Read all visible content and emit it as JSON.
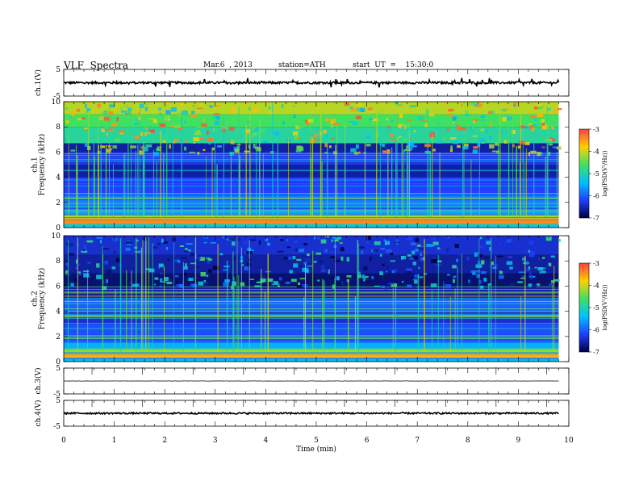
{
  "header": {
    "title": "VLF  Spectra",
    "date": "Mar.6  , 2013",
    "station": "station=ATH",
    "start": "start  UT  =    15:30:0"
  },
  "colorbar": {
    "label": "log(PSD(V²/Hz))",
    "ticks": [
      "-3",
      "-4",
      "-5",
      "-6",
      "-7"
    ],
    "colors": [
      "#ff4040",
      "#ffd000",
      "#40e060",
      "#00c0ff",
      "#2040ff",
      "#000040"
    ]
  },
  "chart_data": [
    {
      "type": "line",
      "name": "ch.1(V)",
      "ylabel": "ch.1(V)",
      "ylim": [
        -5,
        5
      ],
      "yticks": [
        "5",
        "-5"
      ],
      "xlim": [
        0,
        10
      ],
      "data_end_min": 9.8,
      "level": 0,
      "noise_amplitude": 0.4,
      "spike_amplitude": 1.5
    },
    {
      "type": "heatmap",
      "name": "ch.1 spectrogram",
      "ylabel": "ch.1\nFrequency (kHz)",
      "ylim": [
        0,
        10
      ],
      "yticks": [
        "0",
        "2",
        "4",
        "6",
        "8",
        "10"
      ],
      "xlim": [
        0,
        10
      ],
      "data_end_min": 9.8,
      "bands": [
        {
          "f0": 0.0,
          "f1": 0.3,
          "logPSD": -5.3
        },
        {
          "f0": 0.3,
          "f1": 0.6,
          "logPSD": -3.4
        },
        {
          "f0": 0.6,
          "f1": 1.0,
          "logPSD": -3.9
        },
        {
          "f0": 1.0,
          "f1": 1.5,
          "logPSD": -5.6
        },
        {
          "f0": 1.5,
          "f1": 2.5,
          "logPSD": -5.8
        },
        {
          "f0": 2.5,
          "f1": 4.0,
          "logPSD": -6.2
        },
        {
          "f0": 4.0,
          "f1": 5.0,
          "logPSD": -6.6
        },
        {
          "f0": 5.0,
          "f1": 6.0,
          "logPSD": -6.3
        },
        {
          "f0": 6.0,
          "f1": 6.7,
          "logPSD": -6.6
        },
        {
          "f0": 6.7,
          "f1": 8.0,
          "logPSD": -4.9
        },
        {
          "f0": 8.0,
          "f1": 9.0,
          "logPSD": -4.6
        },
        {
          "f0": 9.0,
          "f1": 10.0,
          "logPSD": -4.1
        }
      ],
      "spike_count": 90
    },
    {
      "type": "heatmap",
      "name": "ch.2 spectrogram",
      "ylabel": "ch.2\nFrequency (kHz)",
      "ylim": [
        0,
        10
      ],
      "yticks": [
        "0",
        "2",
        "4",
        "6",
        "8",
        "10"
      ],
      "xlim": [
        0,
        10
      ],
      "data_end_min": 9.8,
      "bands": [
        {
          "f0": 0.0,
          "f1": 0.3,
          "logPSD": -5.4
        },
        {
          "f0": 0.3,
          "f1": 0.6,
          "logPSD": -3.6
        },
        {
          "f0": 0.6,
          "f1": 1.0,
          "logPSD": -4.3
        },
        {
          "f0": 1.0,
          "f1": 1.5,
          "logPSD": -5.5
        },
        {
          "f0": 1.5,
          "f1": 3.0,
          "logPSD": -6.1
        },
        {
          "f0": 3.0,
          "f1": 4.0,
          "logPSD": -6.4
        },
        {
          "f0": 4.0,
          "f1": 5.0,
          "logPSD": -6.0
        },
        {
          "f0": 5.0,
          "f1": 6.0,
          "logPSD": -6.6
        },
        {
          "f0": 6.0,
          "f1": 7.0,
          "logPSD": -6.8
        },
        {
          "f0": 7.0,
          "f1": 8.5,
          "logPSD": -6.6
        },
        {
          "f0": 8.5,
          "f1": 10.0,
          "logPSD": -6.4
        }
      ],
      "spike_count": 60
    },
    {
      "type": "line",
      "name": "ch.3(V)",
      "ylabel": "ch.3(V)",
      "ylim": [
        -5,
        5
      ],
      "yticks": [
        "5",
        "-5"
      ],
      "xlim": [
        0,
        10
      ],
      "data_end_min": 9.8,
      "level": 0,
      "noise_amplitude": 0.05,
      "spike_amplitude": 0
    },
    {
      "type": "line",
      "name": "ch.4(V)",
      "ylabel": "ch.4(V)",
      "ylim": [
        -5,
        5
      ],
      "yticks": [
        "5",
        "-5"
      ],
      "xlim": [
        0,
        10
      ],
      "data_end_min": 9.8,
      "level": 0,
      "noise_amplitude": 0.3,
      "spike_amplitude": 0
    }
  ],
  "xaxis": {
    "label": "Time  (min)",
    "ticks": [
      "0",
      "1",
      "2",
      "3",
      "4",
      "5",
      "6",
      "7",
      "8",
      "9",
      "10"
    ]
  }
}
